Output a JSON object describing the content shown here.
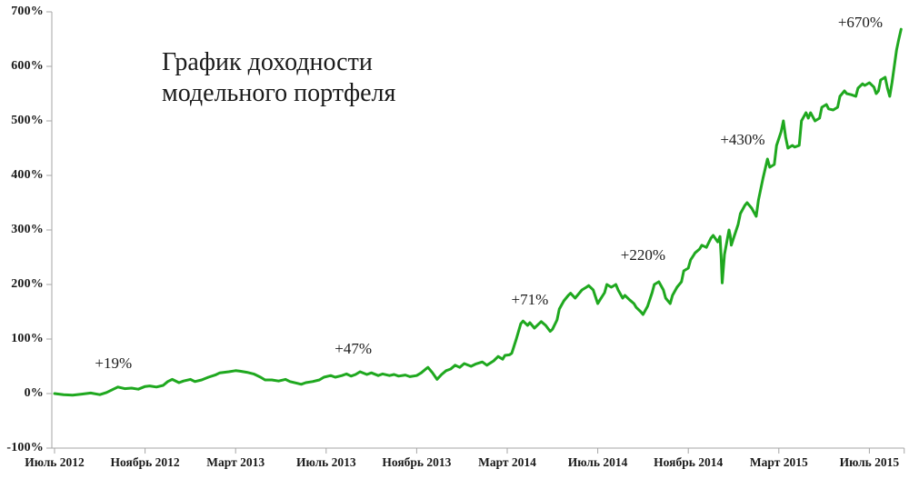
{
  "chart_data": {
    "type": "line",
    "title": "График доходности\nмодельного портфеля",
    "colors": {
      "line": "#1fa81f",
      "axis": "#a6a6a6",
      "text": "#1a1a1a",
      "background": "#ffffff"
    },
    "x_axis": {
      "tick_labels": [
        "Июль 2012",
        "Ноябрь 2012",
        "Март 2013",
        "Июль 2013",
        "Ноябрь 2013",
        "Март 2014",
        "Июль 2014",
        "Ноябрь 2014",
        "Март 2015",
        "Июль 2015"
      ],
      "tick_months": [
        0,
        4,
        8,
        12,
        16,
        20,
        24,
        28,
        32,
        36
      ],
      "range_months": [
        0,
        37.5
      ],
      "grid": false
    },
    "y_axis": {
      "tick_labels": [
        "700%",
        "600%",
        "500%",
        "400%",
        "300%",
        "200%",
        "100%",
        "0%",
        "-100%"
      ],
      "tick_values": [
        700,
        600,
        500,
        400,
        300,
        200,
        100,
        0,
        -100
      ],
      "range": [
        -100,
        700
      ],
      "unit": "%",
      "grid": false
    },
    "annotations": [
      {
        "label": "+19%",
        "t": 2.6,
        "v": 55
      },
      {
        "label": "+47%",
        "t": 13.2,
        "v": 82
      },
      {
        "label": "+71%",
        "t": 21.0,
        "v": 172
      },
      {
        "label": "+220%",
        "t": 26.0,
        "v": 253
      },
      {
        "label": "+430%",
        "t": 30.4,
        "v": 465
      },
      {
        "label": "+670%",
        "t": 35.6,
        "v": 680
      }
    ],
    "series": [
      {
        "points": [
          [
            0,
            0
          ],
          [
            0.4,
            -2
          ],
          [
            0.8,
            -3
          ],
          [
            1.2,
            -1
          ],
          [
            1.6,
            1
          ],
          [
            2.0,
            -2
          ],
          [
            2.3,
            2
          ],
          [
            2.6,
            8
          ],
          [
            2.8,
            12
          ],
          [
            3.1,
            9
          ],
          [
            3.4,
            10
          ],
          [
            3.7,
            8
          ],
          [
            4.0,
            13
          ],
          [
            4.2,
            14
          ],
          [
            4.5,
            12
          ],
          [
            4.8,
            15
          ],
          [
            5.0,
            22
          ],
          [
            5.2,
            26
          ],
          [
            5.5,
            20
          ],
          [
            5.7,
            23
          ],
          [
            6.0,
            26
          ],
          [
            6.2,
            22
          ],
          [
            6.5,
            25
          ],
          [
            6.8,
            30
          ],
          [
            7.1,
            34
          ],
          [
            7.3,
            38
          ],
          [
            7.7,
            40
          ],
          [
            8.0,
            42
          ],
          [
            8.2,
            41
          ],
          [
            8.5,
            39
          ],
          [
            8.8,
            36
          ],
          [
            9.1,
            30
          ],
          [
            9.3,
            25
          ],
          [
            9.6,
            25
          ],
          [
            9.9,
            23
          ],
          [
            10.2,
            26
          ],
          [
            10.4,
            22
          ],
          [
            10.7,
            19
          ],
          [
            10.9,
            17
          ],
          [
            11.1,
            20
          ],
          [
            11.4,
            22
          ],
          [
            11.7,
            25
          ],
          [
            11.9,
            30
          ],
          [
            12.2,
            33
          ],
          [
            12.4,
            30
          ],
          [
            12.7,
            33
          ],
          [
            12.9,
            36
          ],
          [
            13.1,
            32
          ],
          [
            13.3,
            35
          ],
          [
            13.5,
            40
          ],
          [
            13.8,
            35
          ],
          [
            14.0,
            38
          ],
          [
            14.3,
            33
          ],
          [
            14.5,
            36
          ],
          [
            14.8,
            33
          ],
          [
            15.0,
            35
          ],
          [
            15.2,
            32
          ],
          [
            15.5,
            34
          ],
          [
            15.7,
            31
          ],
          [
            16.0,
            33
          ],
          [
            16.2,
            38
          ],
          [
            16.4,
            45
          ],
          [
            16.5,
            48
          ],
          [
            16.7,
            38
          ],
          [
            16.9,
            26
          ],
          [
            17.1,
            35
          ],
          [
            17.3,
            42
          ],
          [
            17.5,
            45
          ],
          [
            17.7,
            52
          ],
          [
            17.9,
            48
          ],
          [
            18.1,
            55
          ],
          [
            18.4,
            50
          ],
          [
            18.6,
            54
          ],
          [
            18.9,
            58
          ],
          [
            19.1,
            52
          ],
          [
            19.4,
            60
          ],
          [
            19.6,
            68
          ],
          [
            19.8,
            63
          ],
          [
            19.9,
            70
          ],
          [
            20.1,
            71
          ],
          [
            20.2,
            74
          ],
          [
            20.4,
            100
          ],
          [
            20.6,
            128
          ],
          [
            20.7,
            133
          ],
          [
            20.9,
            125
          ],
          [
            21.0,
            130
          ],
          [
            21.2,
            120
          ],
          [
            21.4,
            128
          ],
          [
            21.5,
            132
          ],
          [
            21.7,
            125
          ],
          [
            21.9,
            114
          ],
          [
            22.0,
            118
          ],
          [
            22.2,
            135
          ],
          [
            22.3,
            155
          ],
          [
            22.5,
            170
          ],
          [
            22.7,
            180
          ],
          [
            22.8,
            184
          ],
          [
            23.0,
            175
          ],
          [
            23.1,
            180
          ],
          [
            23.3,
            190
          ],
          [
            23.5,
            195
          ],
          [
            23.6,
            198
          ],
          [
            23.8,
            190
          ],
          [
            24.0,
            165
          ],
          [
            24.1,
            172
          ],
          [
            24.3,
            185
          ],
          [
            24.4,
            200
          ],
          [
            24.6,
            195
          ],
          [
            24.8,
            200
          ],
          [
            24.9,
            190
          ],
          [
            25.1,
            175
          ],
          [
            25.2,
            180
          ],
          [
            25.4,
            172
          ],
          [
            25.6,
            165
          ],
          [
            25.7,
            158
          ],
          [
            25.9,
            150
          ],
          [
            26.0,
            145
          ],
          [
            26.2,
            160
          ],
          [
            26.4,
            185
          ],
          [
            26.5,
            200
          ],
          [
            26.7,
            205
          ],
          [
            26.9,
            190
          ],
          [
            27.0,
            175
          ],
          [
            27.2,
            165
          ],
          [
            27.3,
            180
          ],
          [
            27.5,
            195
          ],
          [
            27.7,
            205
          ],
          [
            27.8,
            225
          ],
          [
            28.0,
            230
          ],
          [
            28.1,
            245
          ],
          [
            28.3,
            258
          ],
          [
            28.5,
            265
          ],
          [
            28.6,
            272
          ],
          [
            28.8,
            268
          ],
          [
            29.0,
            285
          ],
          [
            29.1,
            290
          ],
          [
            29.3,
            278
          ],
          [
            29.4,
            288
          ],
          [
            29.45,
            252
          ],
          [
            29.5,
            203
          ],
          [
            29.6,
            255
          ],
          [
            29.8,
            300
          ],
          [
            29.85,
            290
          ],
          [
            29.9,
            272
          ],
          [
            30.0,
            285
          ],
          [
            30.2,
            310
          ],
          [
            30.3,
            330
          ],
          [
            30.5,
            345
          ],
          [
            30.6,
            350
          ],
          [
            30.8,
            340
          ],
          [
            31.0,
            325
          ],
          [
            31.1,
            355
          ],
          [
            31.3,
            395
          ],
          [
            31.5,
            430
          ],
          [
            31.6,
            415
          ],
          [
            31.8,
            420
          ],
          [
            31.9,
            455
          ],
          [
            32.1,
            480
          ],
          [
            32.2,
            500
          ],
          [
            32.3,
            470
          ],
          [
            32.4,
            450
          ],
          [
            32.6,
            455
          ],
          [
            32.7,
            452
          ],
          [
            32.9,
            455
          ],
          [
            33.0,
            500
          ],
          [
            33.2,
            515
          ],
          [
            33.3,
            505
          ],
          [
            33.4,
            515
          ],
          [
            33.6,
            500
          ],
          [
            33.8,
            505
          ],
          [
            33.9,
            525
          ],
          [
            34.1,
            530
          ],
          [
            34.2,
            522
          ],
          [
            34.4,
            520
          ],
          [
            34.6,
            525
          ],
          [
            34.7,
            545
          ],
          [
            34.9,
            555
          ],
          [
            35.0,
            550
          ],
          [
            35.2,
            548
          ],
          [
            35.4,
            545
          ],
          [
            35.5,
            560
          ],
          [
            35.7,
            568
          ],
          [
            35.8,
            565
          ],
          [
            36.0,
            570
          ],
          [
            36.2,
            562
          ],
          [
            36.3,
            550
          ],
          [
            36.4,
            555
          ],
          [
            36.5,
            575
          ],
          [
            36.7,
            580
          ],
          [
            36.8,
            560
          ],
          [
            36.9,
            545
          ],
          [
            37.0,
            570
          ],
          [
            37.1,
            600
          ],
          [
            37.2,
            630
          ],
          [
            37.3,
            650
          ],
          [
            37.4,
            668
          ]
        ]
      }
    ]
  }
}
